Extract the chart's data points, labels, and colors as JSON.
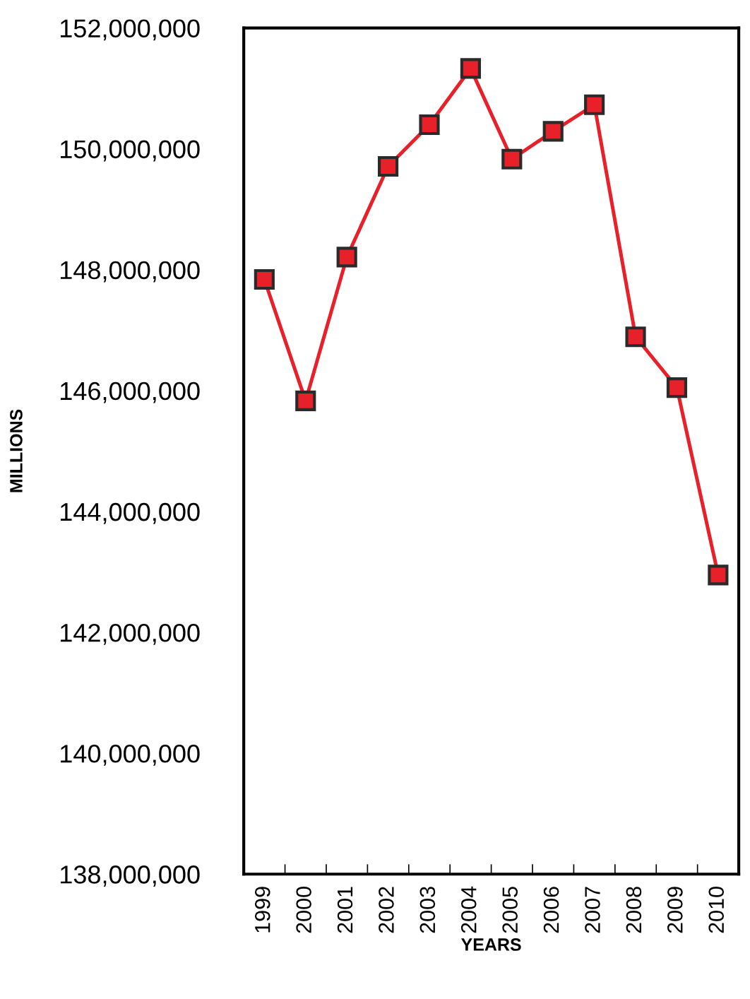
{
  "chart_data": {
    "type": "line",
    "xlabel": "YEARS",
    "ylabel": "MILLIONS",
    "categories": [
      "1999",
      "2000",
      "2001",
      "2002",
      "2003",
      "2004",
      "2005",
      "2006",
      "2007",
      "2008",
      "2009",
      "2010"
    ],
    "series": [
      {
        "color": "#e8202a",
        "values": [
          147840000,
          145830000,
          148210000,
          149710000,
          150400000,
          151330000,
          149830000,
          150290000,
          150730000,
          146890000,
          146050000,
          142950000
        ]
      }
    ],
    "ylim": [
      138000000,
      152000000
    ],
    "yticks": [
      {
        "value": 138000000,
        "label": "138,000,000"
      },
      {
        "value": 140000000,
        "label": "140,000,000"
      },
      {
        "value": 142000000,
        "label": "142,000,000"
      },
      {
        "value": 144000000,
        "label": "144,000,000"
      },
      {
        "value": 146000000,
        "label": "146,000,000"
      },
      {
        "value": 148000000,
        "label": "148,000,000"
      },
      {
        "value": 150000000,
        "label": "150,000,000"
      },
      {
        "value": 152000000,
        "label": "152,000,000"
      }
    ],
    "marker": "square",
    "line_style": "solid",
    "grid": false,
    "legend": false
  }
}
